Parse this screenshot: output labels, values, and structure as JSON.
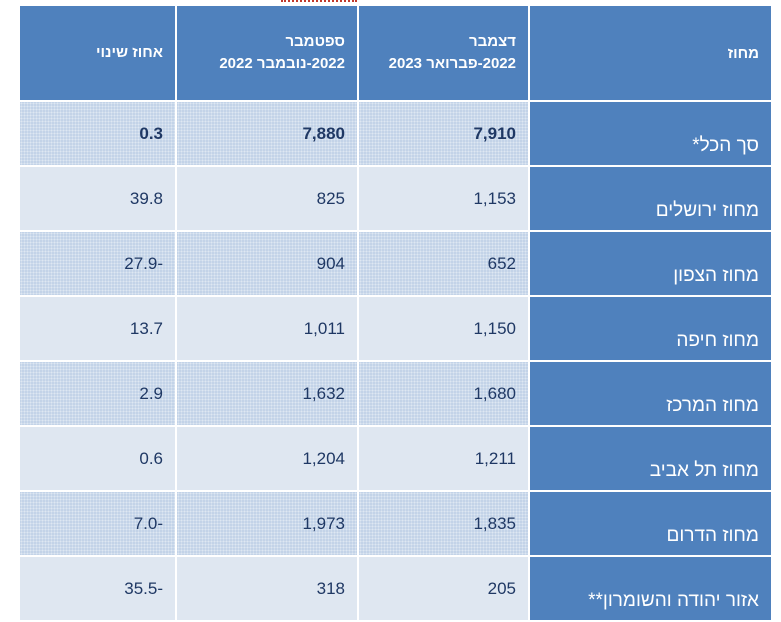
{
  "table": {
    "headers": {
      "change_pct": "אחוז שינוי",
      "period_prev_line1": "ספטמבר",
      "period_prev_line2": "2022-נובמבר 2022",
      "period_curr_line1": "דצמבר",
      "period_curr_line2": "2022-פברואר 2023",
      "district": "מחוז"
    },
    "rows": [
      {
        "district": "סך הכל*",
        "curr": "7,910",
        "prev": "7,880",
        "change": "0.3"
      },
      {
        "district": "מחוז ירושלים",
        "curr": "1,153",
        "prev": "825",
        "change": "39.8"
      },
      {
        "district": "מחוז הצפון",
        "curr": "652",
        "prev": "904",
        "change": "27.9-"
      },
      {
        "district": "מחוז חיפה",
        "curr": "1,150",
        "prev": "1,011",
        "change": "13.7"
      },
      {
        "district": "מחוז המרכז",
        "curr": "1,680",
        "prev": "1,632",
        "change": "2.9"
      },
      {
        "district": "מחוז תל אביב",
        "curr": "1,211",
        "prev": "1,204",
        "change": "0.6"
      },
      {
        "district": "מחוז הדרום",
        "curr": "1,835",
        "prev": "1,973",
        "change": "7.0-"
      },
      {
        "district": "אזור יהודה והשומרון**",
        "curr": "205",
        "prev": "318",
        "change": "35.5-"
      }
    ]
  }
}
